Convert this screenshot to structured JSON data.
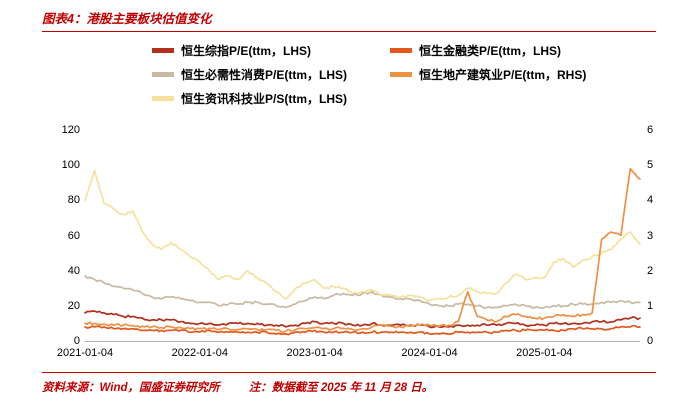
{
  "header": {
    "title": "图表4：港股主要板块估值变化"
  },
  "footer": {
    "source": "资料来源：Wind，国盛证券研究所",
    "note": "注：数据截至 2025 年 11 月 28 日。"
  },
  "chart_data": {
    "type": "line",
    "title": "港股主要板块估值变化",
    "x_count": 59,
    "x_ticks": [
      "2021-01-04",
      "2022-01-04",
      "2023-01-04",
      "2024-01-04",
      "2025-01-04"
    ],
    "x_tick_months": [
      0,
      12,
      24,
      36,
      48
    ],
    "left_axis": {
      "min": 0,
      "max": 120,
      "ticks": [
        0,
        20,
        40,
        60,
        80,
        100,
        120
      ],
      "label": "LHS"
    },
    "right_axis": {
      "min": 0,
      "max": 6,
      "ticks": [
        0,
        1,
        2,
        3,
        4,
        5,
        6
      ],
      "label": "RHS"
    },
    "grid": "off",
    "legend_position": "top",
    "draw_order": [
      2,
      4,
      1,
      0,
      3
    ],
    "series": [
      {
        "name": "恒生综指P/E(ttm，LHS)",
        "axis": "left",
        "color": "#b0301c",
        "values": [
          16,
          17,
          16,
          15,
          14,
          14,
          13,
          12,
          12,
          12,
          11,
          10,
          10,
          10,
          9,
          10,
          10,
          10,
          10,
          9,
          9,
          8,
          9,
          10,
          11,
          10,
          10,
          10,
          9,
          9,
          10,
          9,
          9,
          9,
          9,
          9,
          8,
          8,
          8,
          9,
          9,
          9,
          9,
          9,
          10,
          10,
          9,
          9,
          9,
          10,
          10,
          10,
          10,
          11,
          11,
          11,
          12,
          13,
          13
        ]
      },
      {
        "name": "恒生金融类P/E(ttm，LHS)",
        "axis": "left",
        "color": "#e2571d",
        "values": [
          8,
          8,
          8,
          7,
          7,
          7,
          6,
          6,
          6,
          6,
          6,
          5,
          5,
          6,
          5,
          5,
          5,
          5,
          5,
          5,
          4,
          4,
          5,
          5,
          6,
          5,
          5,
          5,
          5,
          5,
          5,
          5,
          5,
          5,
          5,
          5,
          4,
          4,
          4,
          5,
          5,
          5,
          5,
          5,
          6,
          6,
          6,
          6,
          6,
          6,
          6,
          7,
          7,
          7,
          7,
          7,
          8,
          8,
          8
        ]
      },
      {
        "name": "恒生必需性消费P/E(ttm，LHS)",
        "axis": "left",
        "color": "#c9b9a2",
        "values": [
          37,
          35,
          33,
          31,
          30,
          29,
          27,
          25,
          24,
          25,
          24,
          23,
          22,
          22,
          20,
          21,
          21,
          22,
          22,
          21,
          20,
          19,
          21,
          23,
          25,
          24,
          26,
          27,
          26,
          27,
          28,
          26,
          25,
          24,
          24,
          23,
          21,
          20,
          20,
          21,
          21,
          20,
          19,
          19,
          20,
          21,
          20,
          19,
          19,
          20,
          20,
          21,
          21,
          21,
          22,
          22,
          23,
          22,
          22
        ]
      },
      {
        "name": "恒生地产建筑业P/E(ttm，RHS)",
        "axis": "right",
        "color": "#ef9143",
        "values": [
          0.5,
          0.5,
          0.48,
          0.45,
          0.45,
          0.44,
          0.42,
          0.4,
          0.38,
          0.4,
          0.38,
          0.35,
          0.35,
          0.36,
          0.33,
          0.34,
          0.33,
          0.35,
          0.33,
          0.32,
          0.3,
          0.28,
          0.32,
          0.35,
          0.38,
          0.36,
          0.35,
          0.36,
          0.33,
          0.35,
          0.4,
          0.45,
          0.42,
          0.4,
          0.42,
          0.45,
          0.45,
          0.42,
          0.45,
          0.55,
          1.4,
          0.7,
          0.6,
          0.55,
          0.7,
          0.75,
          0.7,
          0.65,
          0.65,
          0.7,
          0.75,
          0.7,
          0.75,
          0.8,
          2.9,
          3.1,
          3.0,
          4.9,
          4.6
        ]
      },
      {
        "name": "恒生资讯科技业P/S(ttm，LHS)",
        "axis": "left",
        "color": "#f4e29c",
        "values": [
          80,
          97,
          78,
          75,
          72,
          74,
          62,
          55,
          52,
          56,
          52,
          48,
          45,
          40,
          35,
          37,
          35,
          40,
          36,
          33,
          28,
          24,
          30,
          33,
          35,
          30,
          31,
          30,
          27,
          28,
          29,
          26,
          26,
          25,
          26,
          25,
          23,
          24,
          25,
          26,
          30,
          28,
          27,
          27,
          33,
          38,
          35,
          36,
          36,
          45,
          47,
          42,
          46,
          48,
          50,
          52,
          58,
          62,
          55
        ]
      }
    ]
  }
}
